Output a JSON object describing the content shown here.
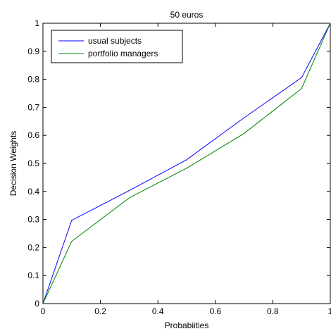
{
  "chart_data": {
    "type": "line",
    "title": "50 euros",
    "xlabel": "Probabiities",
    "ylabel": "Decision Weights",
    "xlim": [
      0,
      1
    ],
    "ylim": [
      0,
      1
    ],
    "xticks": [
      0,
      0.2,
      0.4,
      0.6,
      0.8,
      1
    ],
    "yticks": [
      0,
      0.1,
      0.2,
      0.3,
      0.4,
      0.5,
      0.6,
      0.7,
      0.8,
      0.9,
      1
    ],
    "xtick_labels": [
      "0",
      "0.2",
      "0.4",
      "0.6",
      "0.8",
      "1"
    ],
    "ytick_labels": [
      "0",
      "0.1",
      "0.2",
      "0.3",
      "0.4",
      "0.5",
      "0.6",
      "0.7",
      "0.8",
      "0.9",
      "1"
    ],
    "grid": false,
    "legend_position": "top-left",
    "x": [
      0,
      0.1,
      0.3,
      0.5,
      0.7,
      0.9,
      1
    ],
    "series": [
      {
        "name": "usual subjects",
        "color": "#0000ff",
        "values": [
          0,
          0.297,
          0.403,
          0.513,
          0.663,
          0.806,
          1
        ]
      },
      {
        "name": "portfolio managers",
        "color": "#008000",
        "values": [
          0,
          0.222,
          0.377,
          0.483,
          0.607,
          0.767,
          1
        ]
      }
    ]
  }
}
